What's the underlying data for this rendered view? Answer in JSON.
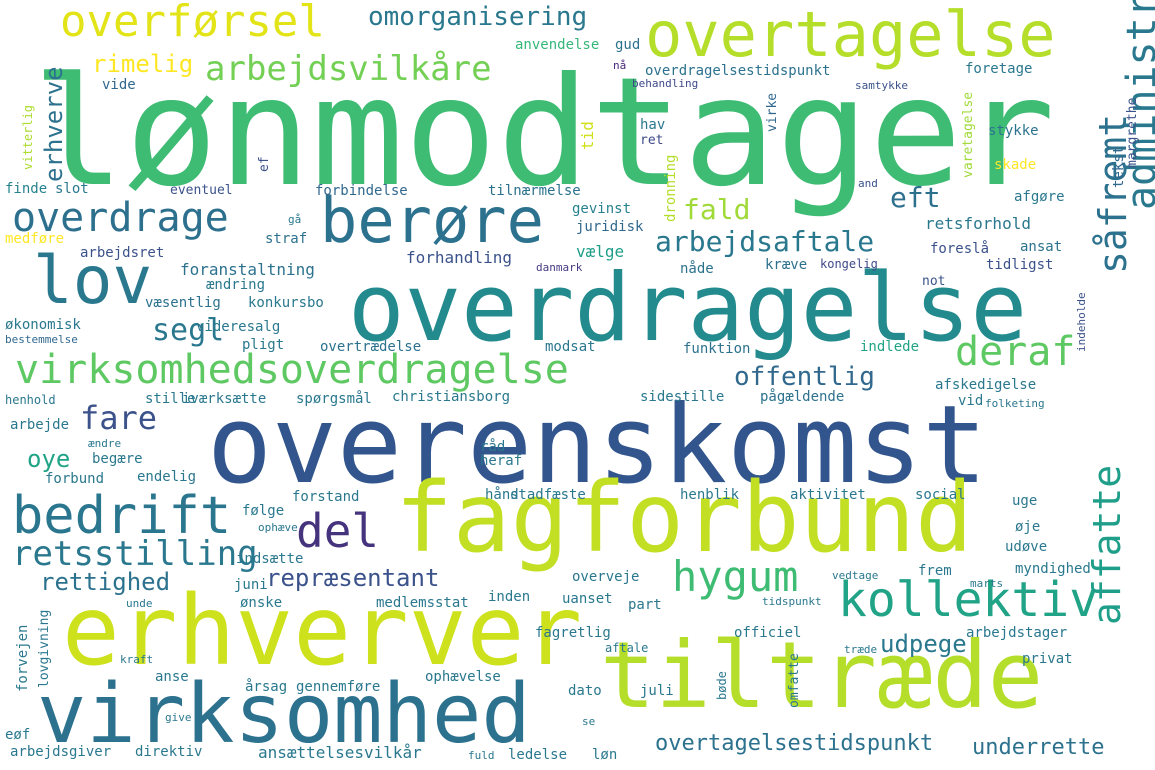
{
  "words": [
    {
      "text": "lønmodtager",
      "color": "#3ebc74"
    },
    {
      "text": "overenskomst",
      "color": "#31558c"
    },
    {
      "text": "fagforbund",
      "color": "#c2df23"
    },
    {
      "text": "overdragelse",
      "color": "#238a8d"
    },
    {
      "text": "erhverver",
      "color": "#cde11d"
    },
    {
      "text": "tiltræde",
      "color": "#b5de2b"
    },
    {
      "text": "virksomhed",
      "color": "#2c728e"
    },
    {
      "text": "overtagelse",
      "color": "#b5de2b"
    },
    {
      "text": "berøre",
      "color": "#2c728e"
    },
    {
      "text": "lov",
      "color": "#2a788e"
    },
    {
      "text": "virksomhedsoverdragelse",
      "color": "#5ec962"
    },
    {
      "text": "administrativ",
      "color": "#2a788e"
    },
    {
      "text": "overførsel",
      "color": "#e2e418"
    },
    {
      "text": "arbejdsvilkåre",
      "color": "#73d055"
    },
    {
      "text": "kollektiv",
      "color": "#20a386"
    },
    {
      "text": "bedrift",
      "color": "#2a768e"
    },
    {
      "text": "hygum",
      "color": "#3fbc73"
    },
    {
      "text": "overdrage",
      "color": "#2d708e"
    },
    {
      "text": "del",
      "color": "#46337e"
    },
    {
      "text": "retsstilling",
      "color": "#2a788e"
    },
    {
      "text": "deraf",
      "color": "#5ec962"
    },
    {
      "text": "fare",
      "color": "#3b528b"
    },
    {
      "text": "såfremt",
      "color": "#2c728e"
    },
    {
      "text": "affatte",
      "color": "#1f9e89"
    },
    {
      "text": "omorganisering",
      "color": "#2a788e"
    },
    {
      "text": "arbejdsaftale",
      "color": "#2a788e"
    },
    {
      "text": "overtagelsestidspunkt",
      "color": "#2c728e"
    },
    {
      "text": "udpege",
      "color": "#2a788e"
    },
    {
      "text": "underrette",
      "color": "#2c728e"
    },
    {
      "text": "fald",
      "color": "#a0da39"
    },
    {
      "text": "eft",
      "color": "#2d708e"
    },
    {
      "text": "segl",
      "color": "#2a788e"
    },
    {
      "text": "offentlig",
      "color": "#31688e"
    },
    {
      "text": "repræsentant",
      "color": "#3b528b"
    },
    {
      "text": "rettighed",
      "color": "#2c728e"
    },
    {
      "text": "erhverve",
      "color": "#2c728e"
    },
    {
      "text": "oye",
      "color": "#20a386"
    },
    {
      "text": "rimelig",
      "color": "#fde725"
    },
    {
      "text": "vitterlig",
      "color": "#addc30"
    },
    {
      "text": "vide",
      "color": "#31688e"
    },
    {
      "text": "anvendelse",
      "color": "#35b779"
    },
    {
      "text": "gud",
      "color": "#2c728e"
    },
    {
      "text": "nå",
      "color": "#482878"
    },
    {
      "text": "overdragelsestidspunkt",
      "color": "#2c728e"
    },
    {
      "text": "behandling",
      "color": "#3e4989"
    },
    {
      "text": "foretage",
      "color": "#2a788e"
    },
    {
      "text": "samtykke",
      "color": "#3b528b"
    },
    {
      "text": "margrethe",
      "color": "#3b528b"
    },
    {
      "text": "tekst",
      "color": "#31688e"
    },
    {
      "text": "varetagelse",
      "color": "#a0da39"
    },
    {
      "text": "virke",
      "color": "#31688e"
    },
    {
      "text": "stykke",
      "color": "#2c728e"
    },
    {
      "text": "skade",
      "color": "#fde725"
    },
    {
      "text": "tid",
      "color": "#d0e11c"
    },
    {
      "text": "hav",
      "color": "#2a788e"
    },
    {
      "text": "ret",
      "color": "#3e4989"
    },
    {
      "text": "dronning",
      "color": "#b5de2b"
    },
    {
      "text": "finde",
      "color": "#26828e"
    },
    {
      "text": "slot",
      "color": "#2a788e"
    },
    {
      "text": "ef",
      "color": "#3b528b"
    },
    {
      "text": "eventuel",
      "color": "#3b528b"
    },
    {
      "text": "forbindelse",
      "color": "#31688e"
    },
    {
      "text": "tilnærmelse",
      "color": "#2c728e"
    },
    {
      "text": "and",
      "color": "#3b528b"
    },
    {
      "text": "afgøre",
      "color": "#2a788e"
    },
    {
      "text": "retsforhold",
      "color": "#2a788e"
    },
    {
      "text": "gevinst",
      "color": "#26828e"
    },
    {
      "text": "juridisk",
      "color": "#31688e"
    },
    {
      "text": "gå",
      "color": "#2a788e"
    },
    {
      "text": "medføre",
      "color": "#fde725"
    },
    {
      "text": "straf",
      "color": "#2c728e"
    },
    {
      "text": "arbejdsret",
      "color": "#3b528b"
    },
    {
      "text": "foranstaltning",
      "color": "#2c728e"
    },
    {
      "text": "forhandling",
      "color": "#3b528b"
    },
    {
      "text": "vælge",
      "color": "#1f9e89"
    },
    {
      "text": "danmark",
      "color": "#443983"
    },
    {
      "text": "nåde",
      "color": "#2c728e"
    },
    {
      "text": "kræve",
      "color": "#2d708e"
    },
    {
      "text": "kongelig",
      "color": "#3e4989"
    },
    {
      "text": "foreslå",
      "color": "#3b528b"
    },
    {
      "text": "ansat",
      "color": "#2c728e"
    },
    {
      "text": "tidligst",
      "color": "#3b528b"
    },
    {
      "text": "ændring",
      "color": "#2a788e"
    },
    {
      "text": "væsentlig",
      "color": "#2c728e"
    },
    {
      "text": "konkursbo",
      "color": "#2a788e"
    },
    {
      "text": "not",
      "color": "#3b528b"
    },
    {
      "text": "indeholde",
      "color": "#3b528b"
    },
    {
      "text": "økonomisk",
      "color": "#2a788e"
    },
    {
      "text": "bestemmelse",
      "color": "#31688e"
    },
    {
      "text": "videresalg",
      "color": "#2a788e"
    },
    {
      "text": "pligt",
      "color": "#2a788e"
    },
    {
      "text": "overtrædelse",
      "color": "#2c728e"
    },
    {
      "text": "modsat",
      "color": "#2a788e"
    },
    {
      "text": "funktion",
      "color": "#2c728e"
    },
    {
      "text": "indlede",
      "color": "#20a386"
    },
    {
      "text": "afskedigelse",
      "color": "#2a788e"
    },
    {
      "text": "vid",
      "color": "#2a788e"
    },
    {
      "text": "folketing",
      "color": "#2a788e"
    },
    {
      "text": "henhold",
      "color": "#2a788e"
    },
    {
      "text": "stille",
      "color": "#2a788e"
    },
    {
      "text": "iværksætte",
      "color": "#2a788e"
    },
    {
      "text": "spørgsmål",
      "color": "#2a788e"
    },
    {
      "text": "christiansborg",
      "color": "#2a788e"
    },
    {
      "text": "sidestille",
      "color": "#2a788e"
    },
    {
      "text": "pågældende",
      "color": "#2c728e"
    },
    {
      "text": "arbejde",
      "color": "#2a788e"
    },
    {
      "text": "ændre",
      "color": "#2a788e"
    },
    {
      "text": "begære",
      "color": "#2a788e"
    },
    {
      "text": "råd",
      "color": "#2a788e"
    },
    {
      "text": "heraf",
      "color": "#2a788e"
    },
    {
      "text": "forbund",
      "color": "#2a788e"
    },
    {
      "text": "endelig",
      "color": "#2a788e"
    },
    {
      "text": "hånd",
      "color": "#2a788e"
    },
    {
      "text": "stadfæste",
      "color": "#2a788e"
    },
    {
      "text": "henblik",
      "color": "#2a788e"
    },
    {
      "text": "aktivitet",
      "color": "#2a788e"
    },
    {
      "text": "social",
      "color": "#2a788e"
    },
    {
      "text": "uge",
      "color": "#2a788e"
    },
    {
      "text": "forstand",
      "color": "#2a788e"
    },
    {
      "text": "følge",
      "color": "#2a788e"
    },
    {
      "text": "ophæve",
      "color": "#2a788e"
    },
    {
      "text": "øje",
      "color": "#2a788e"
    },
    {
      "text": "indsætte",
      "color": "#2a788e"
    },
    {
      "text": "udøve",
      "color": "#2a788e"
    },
    {
      "text": "juni",
      "color": "#2a788e"
    },
    {
      "text": "overveje",
      "color": "#2a788e"
    },
    {
      "text": "vedtage",
      "color": "#2a788e"
    },
    {
      "text": "frem",
      "color": "#2a788e"
    },
    {
      "text": "marts",
      "color": "#2a788e"
    },
    {
      "text": "myndighed",
      "color": "#2a788e"
    },
    {
      "text": "ønske",
      "color": "#2a788e"
    },
    {
      "text": "unde",
      "color": "#2a788e"
    },
    {
      "text": "medlemsstat",
      "color": "#2a788e"
    },
    {
      "text": "uanset",
      "color": "#2a788e"
    },
    {
      "text": "inden",
      "color": "#2a788e"
    },
    {
      "text": "part",
      "color": "#2a788e"
    },
    {
      "text": "tidspunkt",
      "color": "#2a788e"
    },
    {
      "text": "forvejen",
      "color": "#2a788e"
    },
    {
      "text": "lovgivning",
      "color": "#2a788e"
    },
    {
      "text": "kraft",
      "color": "#2a788e"
    },
    {
      "text": "fagretlig",
      "color": "#2a788e"
    },
    {
      "text": "officiel",
      "color": "#2a788e"
    },
    {
      "text": "arbejdstager",
      "color": "#2a788e"
    },
    {
      "text": "aftale",
      "color": "#2a788e"
    },
    {
      "text": "træde",
      "color": "#2a788e"
    },
    {
      "text": "omfatte",
      "color": "#2a788e"
    },
    {
      "text": "privat",
      "color": "#2a788e"
    },
    {
      "text": "anse",
      "color": "#2a788e"
    },
    {
      "text": "ophævelse",
      "color": "#2a788e"
    },
    {
      "text": "årsag",
      "color": "#2a788e"
    },
    {
      "text": "gennemføre",
      "color": "#2a788e"
    },
    {
      "text": "dato",
      "color": "#2a788e"
    },
    {
      "text": "juli",
      "color": "#2a788e"
    },
    {
      "text": "bøde",
      "color": "#2a788e"
    },
    {
      "text": "give",
      "color": "#2a788e"
    },
    {
      "text": "se",
      "color": "#2a788e"
    },
    {
      "text": "eøf",
      "color": "#2a788e"
    },
    {
      "text": "arbejdsgiver",
      "color": "#2a788e"
    },
    {
      "text": "direktiv",
      "color": "#2a788e"
    },
    {
      "text": "ansættelsesvilkår",
      "color": "#2a788e"
    },
    {
      "text": "fuld",
      "color": "#2a788e"
    },
    {
      "text": "ledelse",
      "color": "#2a788e"
    },
    {
      "text": "løn",
      "color": "#2a788e"
    }
  ]
}
